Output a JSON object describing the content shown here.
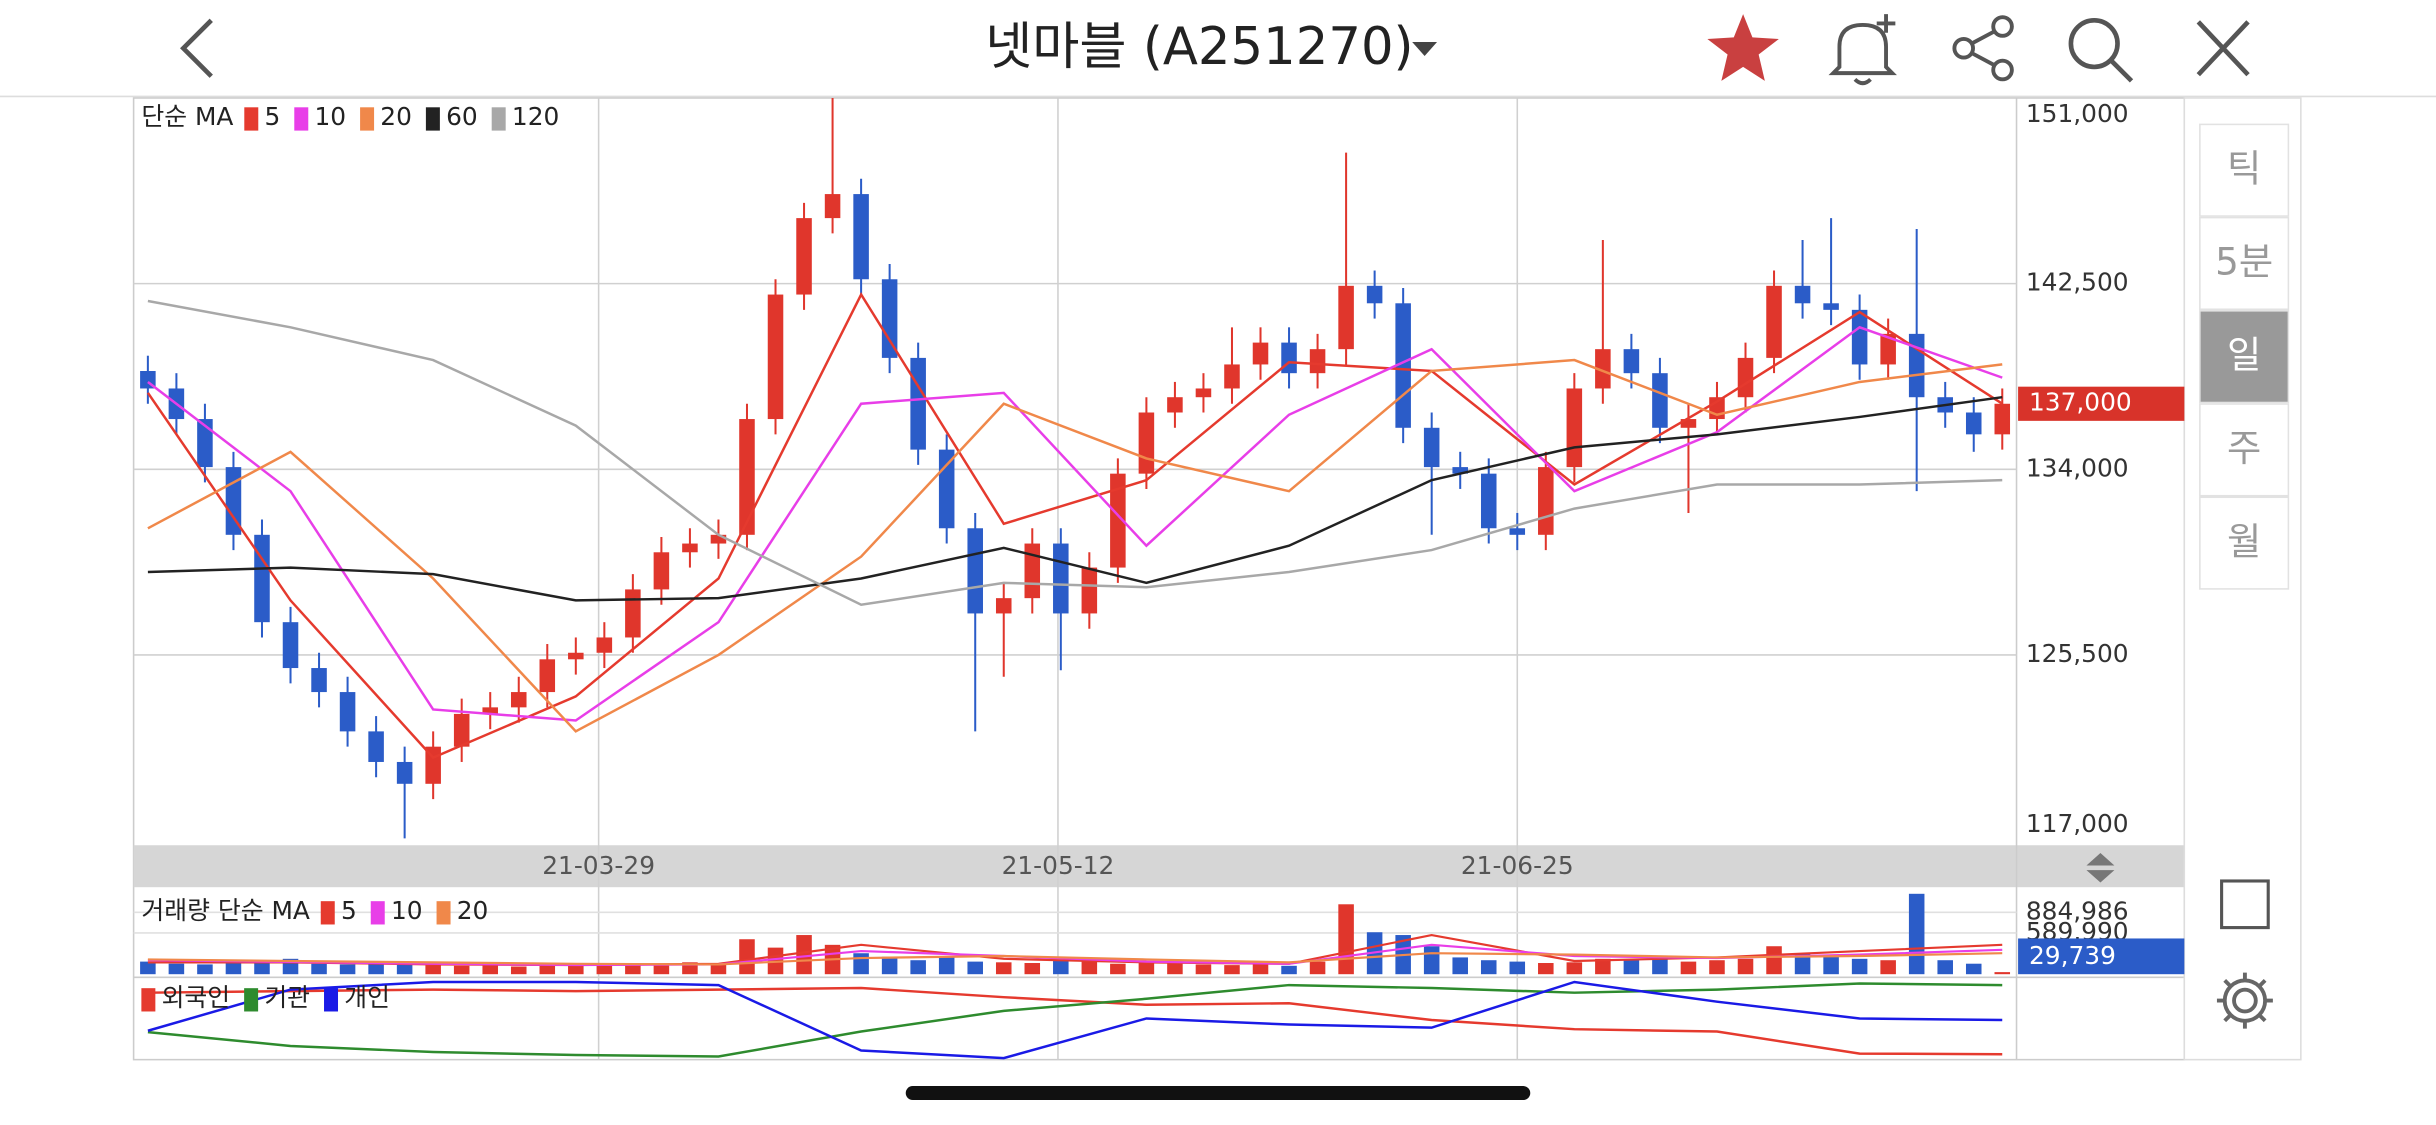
{
  "header": {
    "title": "넷마블 (A251270)"
  },
  "side_menu": {
    "periods": [
      "틱",
      "5분",
      "일",
      "주",
      "월"
    ],
    "selected_index": 2
  },
  "chart_data": [
    {
      "type": "candlestick",
      "legend_title": "단순 MA",
      "up_color": "#e0362c",
      "down_color": "#2b5cc8",
      "grid": true,
      "candles": {
        "open": [
          138500,
          137700,
          136300,
          134100,
          131000,
          127000,
          124900,
          123800,
          122000,
          120600,
          119600,
          121300,
          122800,
          123100,
          123800,
          125300,
          125600,
          126300,
          128500,
          130200,
          130600,
          131000,
          136300,
          142000,
          145500,
          146600,
          142700,
          139100,
          134900,
          131300,
          127400,
          128100,
          130600,
          127400,
          129500,
          133800,
          136600,
          137300,
          137700,
          138800,
          139800,
          138400,
          139500,
          142400,
          141600,
          135900,
          134100,
          133800,
          131300,
          131000,
          134100,
          137700,
          139500,
          138400,
          135900,
          136300,
          137300,
          139100,
          142400,
          141600,
          141300,
          138800,
          140200,
          137300,
          136600,
          135600
        ],
        "high": [
          139200,
          138400,
          137000,
          134800,
          131700,
          127700,
          125600,
          124500,
          122700,
          121300,
          122000,
          123500,
          123800,
          124500,
          126000,
          126300,
          127000,
          129200,
          130900,
          131300,
          131700,
          137000,
          142700,
          146200,
          151000,
          147300,
          143400,
          139800,
          135600,
          132000,
          128800,
          131300,
          131300,
          130200,
          134500,
          137300,
          138000,
          138400,
          140500,
          140500,
          140500,
          140200,
          148500,
          143100,
          142300,
          136600,
          134800,
          134500,
          132000,
          134800,
          138400,
          144500,
          140200,
          139100,
          137000,
          138000,
          139800,
          143100,
          144500,
          145500,
          142000,
          140900,
          145000,
          138000,
          137300,
          137700
        ],
        "low": [
          137000,
          135600,
          133400,
          130300,
          126300,
          124200,
          123100,
          121300,
          119900,
          117100,
          118900,
          120600,
          122100,
          122400,
          123100,
          124600,
          124900,
          125600,
          127800,
          129500,
          129900,
          130300,
          135600,
          141300,
          144800,
          142000,
          138400,
          134200,
          130600,
          122000,
          124500,
          127400,
          124800,
          126700,
          128800,
          133100,
          135900,
          136600,
          137000,
          138100,
          137700,
          137700,
          138800,
          140900,
          135200,
          131000,
          133100,
          130600,
          130300,
          130300,
          133400,
          137000,
          137700,
          135200,
          132000,
          135600,
          136600,
          138400,
          140900,
          140600,
          138100,
          138100,
          133000,
          135900,
          134800,
          134900
        ],
        "close": [
          137700,
          136300,
          134100,
          131000,
          127000,
          124900,
          123800,
          122000,
          120600,
          119600,
          121300,
          122800,
          123100,
          123800,
          125300,
          125600,
          126300,
          128500,
          130200,
          130600,
          131000,
          136300,
          142000,
          145500,
          146600,
          142700,
          139100,
          134900,
          131300,
          127400,
          128100,
          130600,
          127400,
          129500,
          133800,
          136600,
          137300,
          137700,
          138800,
          139800,
          138400,
          139500,
          142400,
          141600,
          135900,
          134100,
          133800,
          131300,
          131000,
          134100,
          137700,
          139500,
          138400,
          135900,
          136300,
          137300,
          139100,
          142400,
          141600,
          141300,
          138800,
          140200,
          137300,
          136600,
          135600,
          137000
        ]
      },
      "ma_x": [
        0,
        5,
        10,
        15,
        20,
        25,
        30,
        35,
        40,
        45,
        50,
        55,
        60,
        65
      ],
      "series": [
        {
          "name": "5",
          "color": "#e53a2e",
          "values": [
            137500,
            128000,
            120800,
            123600,
            129000,
            142000,
            131500,
            133500,
            138900,
            138500,
            133300,
            137100,
            141200,
            137000
          ]
        },
        {
          "name": "10",
          "color": "#e83ee8",
          "values": [
            138000,
            133000,
            123000,
            122500,
            127000,
            137000,
            137500,
            130500,
            136500,
            139500,
            133000,
            135700,
            140500,
            138200
          ]
        },
        {
          "name": "20",
          "color": "#f0884a",
          "values": [
            131300,
            134800,
            129000,
            122000,
            125500,
            130000,
            137000,
            134500,
            133000,
            138500,
            139000,
            136500,
            138000,
            138800
          ]
        },
        {
          "name": "60",
          "color": "#222222",
          "values": [
            129300,
            129500,
            129200,
            128000,
            128100,
            129000,
            130400,
            128800,
            130500,
            133500,
            135000,
            135600,
            136400,
            137300
          ]
        },
        {
          "name": "120",
          "color": "#a8a8a8",
          "values": [
            141700,
            140500,
            139000,
            136000,
            131000,
            127800,
            128800,
            128600,
            129300,
            130300,
            132200,
            133300,
            133300,
            133500
          ]
        }
      ],
      "xlim": [
        -0.5,
        65.5
      ],
      "xticks": [
        {
          "value": 15.8,
          "label": "21-03-29"
        },
        {
          "value": 31.9,
          "label": "21-05-12"
        },
        {
          "value": 48,
          "label": "21-06-25"
        }
      ],
      "ylim": [
        117000,
        151000
      ],
      "yticks": [
        {
          "value": 117000,
          "label": "117,000"
        },
        {
          "value": 125500,
          "label": "125,500"
        },
        {
          "value": 134000,
          "label": "134,000"
        },
        {
          "value": 142500,
          "label": "142,500"
        },
        {
          "value": 151000,
          "label": "151,000"
        }
      ],
      "current": {
        "value": 137000,
        "label": "137,000",
        "color": "#d8332a"
      }
    },
    {
      "type": "bar",
      "legend_title": "거래량 단순 MA",
      "xlim": [
        -0.5,
        65.5
      ],
      "ylim": [
        0,
        1200000
      ],
      "values": [
        180000,
        150000,
        140000,
        160000,
        170000,
        220000,
        150000,
        140000,
        160000,
        150000,
        130000,
        120000,
        140000,
        110000,
        130000,
        120000,
        150000,
        140000,
        130000,
        170000,
        160000,
        500000,
        380000,
        560000,
        420000,
        300000,
        250000,
        200000,
        240000,
        180000,
        170000,
        160000,
        200000,
        190000,
        150000,
        170000,
        160000,
        140000,
        130000,
        150000,
        120000,
        180000,
        1000000,
        600000,
        560000,
        400000,
        240000,
        200000,
        180000,
        160000,
        170000,
        220000,
        200000,
        260000,
        180000,
        200000,
        220000,
        400000,
        300000,
        250000,
        220000,
        200000,
        1150000,
        200000,
        150000,
        29739
      ],
      "ma_x": [
        0,
        5,
        10,
        15,
        20,
        25,
        30,
        35,
        40,
        45,
        50,
        55,
        60,
        65
      ],
      "series": [
        {
          "name": "5",
          "color": "#e53a2e",
          "values": [
            170000,
            170000,
            140000,
            130000,
            150000,
            420000,
            220000,
            170000,
            150000,
            560000,
            190000,
            240000,
            330000,
            420000
          ]
        },
        {
          "name": "10",
          "color": "#e83ee8",
          "values": [
            200000,
            175000,
            150000,
            130000,
            140000,
            330000,
            260000,
            180000,
            150000,
            420000,
            260000,
            230000,
            280000,
            350000
          ]
        },
        {
          "name": "20",
          "color": "#f0884a",
          "values": [
            210000,
            190000,
            170000,
            150000,
            140000,
            230000,
            260000,
            210000,
            170000,
            300000,
            280000,
            240000,
            260000,
            300000
          ]
        }
      ],
      "yticks": [
        {
          "value": 589990,
          "label": "589,990"
        },
        {
          "value": 884986,
          "label": "884,986"
        }
      ],
      "current": {
        "value": 29739,
        "label": "29,739",
        "color": "#2b5cc8"
      }
    },
    {
      "type": "line",
      "xlim": [
        -0.5,
        65.5
      ],
      "ylim": [
        0,
        100
      ],
      "x": [
        0,
        5,
        10,
        15,
        20,
        25,
        30,
        35,
        40,
        45,
        50,
        55,
        60,
        65
      ],
      "series": [
        {
          "name": "외국인",
          "color": "#e53a2e",
          "values": [
            86,
            88,
            90,
            88,
            90,
            92,
            80,
            70,
            72,
            50,
            38,
            35,
            6,
            5
          ]
        },
        {
          "name": "기관",
          "color": "#2e8b2e",
          "values": [
            34,
            16,
            8,
            4,
            2,
            35,
            62,
            78,
            96,
            92,
            86,
            90,
            98,
            96
          ]
        },
        {
          "name": "개인",
          "color": "#1a1ae6",
          "values": [
            36,
            90,
            100,
            100,
            96,
            10,
            0,
            52,
            44,
            40,
            100,
            74,
            52,
            50
          ]
        }
      ]
    }
  ]
}
